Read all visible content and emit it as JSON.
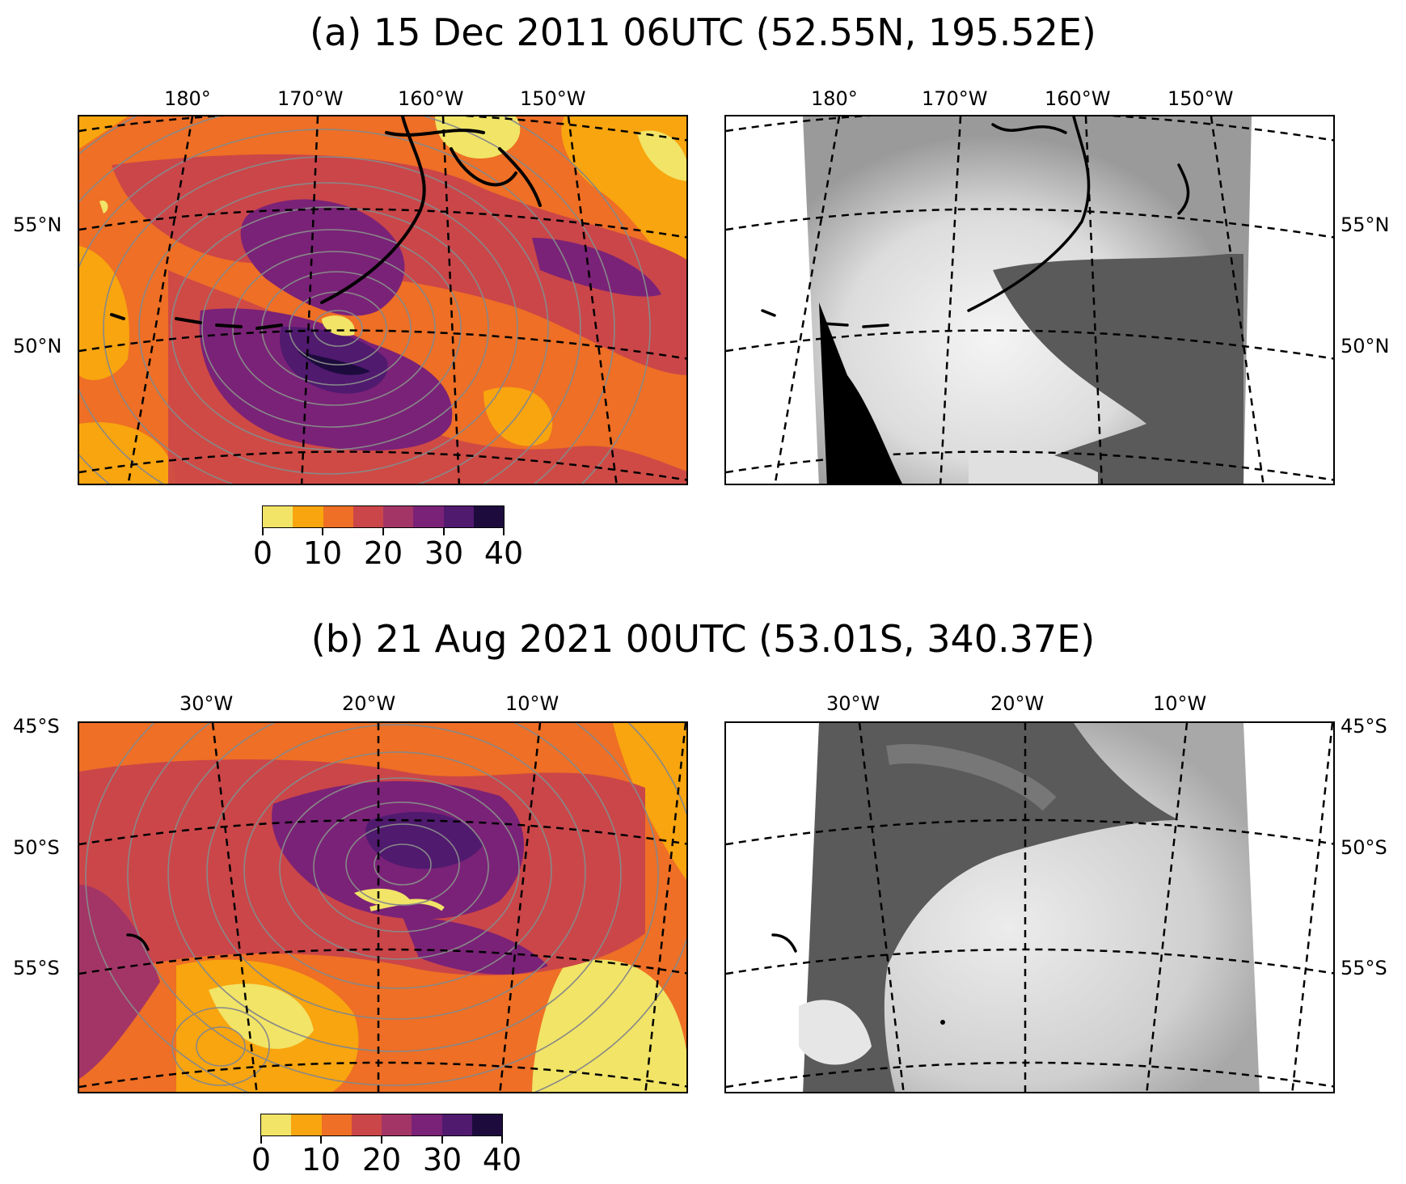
{
  "figure": {
    "panels": [
      {
        "id": "a",
        "title": "(a) 15 Dec 2011 06UTC (52.55N, 195.52E)",
        "lon_ticks": [
          "180°",
          "170°W",
          "160°W",
          "150°W"
        ],
        "lat_ticks": [
          "55°N",
          "50°N"
        ],
        "colorbar_ticks": [
          "0",
          "10",
          "20",
          "30",
          "40"
        ]
      },
      {
        "id": "b",
        "title": "(b) 21 Aug 2021 00UTC (53.01S, 340.37E)",
        "lon_ticks": [
          "30°W",
          "20°W",
          "10°W"
        ],
        "lat_ticks": [
          "45°S",
          "50°S",
          "55°S"
        ],
        "colorbar_ticks": [
          "0",
          "10",
          "20",
          "30",
          "40"
        ]
      }
    ],
    "colorbar": {
      "min": 0,
      "max": 40,
      "step": 5,
      "colors": [
        "#f1e467",
        "#f8a50f",
        "#ee6f25",
        "#cb4649",
        "#a33566",
        "#7a2278",
        "#501a6f",
        "#1d0b3e"
      ]
    },
    "colors": {
      "contour": "#888888",
      "gridline": "#000000",
      "cloud_bright": "#e8e8e8",
      "ocean_dark": "#5a5a5a"
    }
  }
}
